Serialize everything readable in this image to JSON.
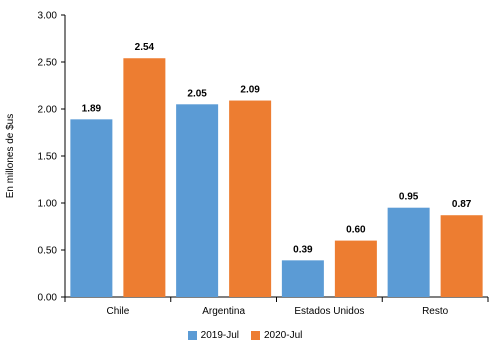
{
  "chart_data": {
    "type": "bar",
    "title": "",
    "xlabel": "",
    "ylabel": "En millones de $us",
    "ylim": [
      0,
      3.0
    ],
    "yticks": [
      "0.00",
      "0.50",
      "1.00",
      "1.50",
      "2.00",
      "2.50",
      "3.00"
    ],
    "categories": [
      "Chile",
      "Argentina",
      "Estados Unidos",
      "Resto"
    ],
    "series": [
      {
        "name": "2019-Jul",
        "color": "#5B9BD5",
        "values": [
          1.89,
          2.05,
          0.39,
          0.95
        ],
        "labels": [
          "1.89",
          "2.05",
          "0.39",
          "0.95"
        ]
      },
      {
        "name": "2020-Jul",
        "color": "#ED7D31",
        "values": [
          2.54,
          2.09,
          0.6,
          0.87
        ],
        "labels": [
          "2.54",
          "2.09",
          "0.60",
          "0.87"
        ]
      }
    ],
    "grid": false,
    "legend": "bottom"
  }
}
